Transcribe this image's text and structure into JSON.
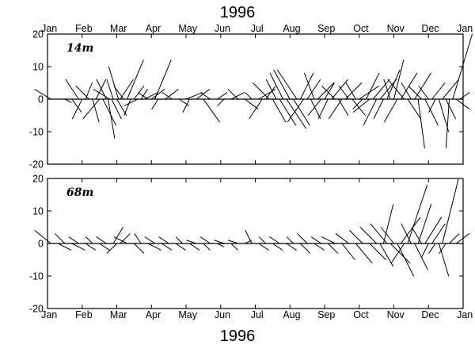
{
  "title_top": "1996",
  "title_bottom": "1996",
  "chart_data": [
    {
      "type": "stick-vector",
      "panel_label": "14m",
      "months_top": [
        "Jan",
        "Feb",
        "Mar",
        "Apr",
        "May",
        "Jun",
        "Jul",
        "Aug",
        "Sep",
        "Oct",
        "Nov",
        "Dec",
        "Jan"
      ],
      "ylim": [
        -20,
        20
      ],
      "yticks": [
        -20,
        -10,
        0,
        10,
        20
      ],
      "xlim_months": [
        0,
        12
      ],
      "vectors": [
        [
          0.1,
          -5,
          3
        ],
        [
          0.5,
          2,
          -1
        ],
        [
          0.7,
          3,
          -4
        ],
        [
          0.9,
          -4,
          6
        ],
        [
          1.0,
          -3,
          -6
        ],
        [
          1.1,
          2,
          5
        ],
        [
          1.2,
          -4,
          4
        ],
        [
          1.3,
          2,
          -7
        ],
        [
          1.4,
          3,
          6
        ],
        [
          1.5,
          -5,
          -6
        ],
        [
          1.6,
          4,
          -8
        ],
        [
          1.7,
          -3,
          6
        ],
        [
          1.75,
          2,
          -12
        ],
        [
          1.8,
          -5,
          3
        ],
        [
          1.85,
          3,
          -6
        ],
        [
          1.9,
          -2,
          6
        ],
        [
          2.0,
          3,
          -5
        ],
        [
          2.05,
          -3,
          10
        ],
        [
          2.1,
          4,
          6
        ],
        [
          2.2,
          -3,
          4
        ],
        [
          2.3,
          5,
          12
        ],
        [
          2.4,
          -2,
          -5
        ],
        [
          2.5,
          3,
          4
        ],
        [
          2.6,
          -4,
          -2
        ],
        [
          2.7,
          2,
          3
        ],
        [
          2.8,
          4,
          2
        ],
        [
          2.9,
          -3,
          2
        ],
        [
          3.0,
          4,
          3
        ],
        [
          3.1,
          5,
          12
        ],
        [
          3.2,
          -2,
          -3
        ],
        [
          3.4,
          4,
          3
        ],
        [
          3.6,
          -3,
          2
        ],
        [
          3.8,
          3,
          -2
        ],
        [
          4.0,
          5,
          2
        ],
        [
          4.1,
          -2,
          -4
        ],
        [
          4.3,
          4,
          3
        ],
        [
          4.5,
          5,
          -7
        ],
        [
          4.7,
          -3,
          2
        ],
        [
          4.9,
          3,
          2
        ],
        [
          5.1,
          -2,
          -2
        ],
        [
          5.3,
          4,
          2
        ],
        [
          5.5,
          -3,
          3
        ],
        [
          5.7,
          4,
          -3
        ],
        [
          5.9,
          -2,
          2
        ],
        [
          6.1,
          5,
          3
        ],
        [
          6.2,
          -4,
          -6
        ],
        [
          6.3,
          3,
          4
        ],
        [
          6.4,
          -5,
          5
        ],
        [
          6.5,
          4,
          -7
        ],
        [
          6.6,
          -3,
          6
        ],
        [
          6.7,
          5,
          -8
        ],
        [
          6.8,
          -4,
          8
        ],
        [
          6.9,
          6,
          -9
        ],
        [
          7.0,
          -5,
          9
        ],
        [
          7.1,
          5,
          -8
        ],
        [
          7.2,
          -6,
          9
        ],
        [
          7.3,
          4,
          8
        ],
        [
          7.4,
          -5,
          -7
        ],
        [
          7.5,
          4,
          6
        ],
        [
          7.6,
          3,
          -6
        ],
        [
          7.7,
          -3,
          8
        ],
        [
          7.8,
          5,
          5
        ],
        [
          7.9,
          -4,
          -5
        ],
        [
          8.0,
          3,
          5
        ],
        [
          8.1,
          -3,
          -6
        ],
        [
          8.2,
          5,
          6
        ],
        [
          8.3,
          -4,
          4
        ],
        [
          8.4,
          3,
          -5
        ],
        [
          8.5,
          -4,
          -6
        ],
        [
          8.6,
          5,
          5
        ],
        [
          8.7,
          -3,
          4
        ],
        [
          8.8,
          4,
          -5
        ],
        [
          8.9,
          -3,
          5
        ],
        [
          9.0,
          6,
          4
        ],
        [
          9.1,
          -3,
          -3
        ],
        [
          9.2,
          4,
          8
        ],
        [
          9.3,
          -5,
          -4
        ],
        [
          9.4,
          5,
          6
        ],
        [
          9.5,
          -4,
          -8
        ],
        [
          9.6,
          5,
          6
        ],
        [
          9.7,
          -3,
          -6
        ],
        [
          9.8,
          4,
          9
        ],
        [
          9.9,
          -2,
          6
        ],
        [
          10.0,
          3,
          12
        ],
        [
          10.1,
          -4,
          -7
        ],
        [
          10.2,
          5,
          8
        ],
        [
          10.3,
          -5,
          6
        ],
        [
          10.4,
          4,
          -6
        ],
        [
          10.5,
          -3,
          5
        ],
        [
          10.6,
          5,
          8
        ],
        [
          10.7,
          2,
          -15
        ],
        [
          10.8,
          -4,
          4
        ],
        [
          10.9,
          4,
          -8
        ],
        [
          11.0,
          -3,
          4
        ],
        [
          11.1,
          4,
          5
        ],
        [
          11.2,
          -2,
          -4
        ],
        [
          11.3,
          3,
          -10
        ],
        [
          11.4,
          5,
          6
        ],
        [
          11.5,
          3,
          -6
        ],
        [
          11.6,
          -1,
          -15
        ],
        [
          11.7,
          6,
          20
        ],
        [
          11.8,
          4,
          -3
        ],
        [
          11.9,
          3,
          2
        ]
      ]
    },
    {
      "type": "stick-vector",
      "panel_label": "68m",
      "months_bottom": [
        "Jan",
        "Feb",
        "Mar",
        "Apr",
        "May",
        "Jun",
        "Jul",
        "Aug",
        "Sep",
        "Oct",
        "Nov",
        "Dec",
        "Jan"
      ],
      "ylim": [
        -20,
        20
      ],
      "yticks": [
        -20,
        -10,
        0,
        10,
        20
      ],
      "xlim_months": [
        0,
        12
      ],
      "vectors": [
        [
          0.1,
          -5,
          4
        ],
        [
          0.3,
          4,
          -2
        ],
        [
          0.5,
          -3,
          3
        ],
        [
          0.7,
          4,
          -2
        ],
        [
          0.9,
          -3,
          2
        ],
        [
          1.1,
          3,
          -2
        ],
        [
          1.3,
          -2,
          2
        ],
        [
          1.5,
          3,
          -2
        ],
        [
          1.7,
          -3,
          2
        ],
        [
          1.9,
          3,
          5
        ],
        [
          2.0,
          -3,
          -3
        ],
        [
          2.1,
          3,
          3
        ],
        [
          2.3,
          -4,
          2
        ],
        [
          2.5,
          3,
          -3
        ],
        [
          2.7,
          -2,
          3
        ],
        [
          2.9,
          4,
          -2
        ],
        [
          3.1,
          -3,
          2
        ],
        [
          3.3,
          3,
          -2
        ],
        [
          3.5,
          -3,
          2
        ],
        [
          3.7,
          3,
          -2
        ],
        [
          3.9,
          -2,
          2
        ],
        [
          4.1,
          3,
          -2
        ],
        [
          4.3,
          -3,
          1
        ],
        [
          4.5,
          2,
          -2
        ],
        [
          4.7,
          -3,
          2
        ],
        [
          4.9,
          2,
          -1
        ],
        [
          5.1,
          -3,
          1
        ],
        [
          5.3,
          2,
          -2
        ],
        [
          5.5,
          -3,
          1
        ],
        [
          5.7,
          2,
          1
        ],
        [
          5.9,
          -2,
          4
        ],
        [
          6.1,
          3,
          -2
        ],
        [
          6.3,
          -2,
          2
        ],
        [
          6.5,
          3,
          -2
        ],
        [
          6.7,
          -3,
          2
        ],
        [
          6.9,
          3,
          -2
        ],
        [
          7.1,
          -2,
          2
        ],
        [
          7.3,
          3,
          -3
        ],
        [
          7.5,
          -3,
          3
        ],
        [
          7.7,
          3,
          -2
        ],
        [
          7.9,
          -3,
          2
        ],
        [
          8.1,
          3,
          -3
        ],
        [
          8.3,
          -4,
          2
        ],
        [
          8.5,
          4,
          -5
        ],
        [
          8.7,
          -4,
          3
        ],
        [
          8.9,
          5,
          -6
        ],
        [
          9.1,
          -4,
          4
        ],
        [
          9.3,
          5,
          -5
        ],
        [
          9.5,
          -5,
          5
        ],
        [
          9.6,
          4,
          -7
        ],
        [
          9.7,
          3,
          12
        ],
        [
          9.8,
          -5,
          6
        ],
        [
          9.9,
          6,
          -6
        ],
        [
          10.0,
          -4,
          5
        ],
        [
          10.1,
          5,
          -10
        ],
        [
          10.2,
          6,
          8
        ],
        [
          10.3,
          -4,
          -6
        ],
        [
          10.4,
          6,
          18
        ],
        [
          10.5,
          -3,
          6
        ],
        [
          10.6,
          4,
          -8
        ],
        [
          10.7,
          4,
          12
        ],
        [
          10.8,
          -3,
          5
        ],
        [
          10.9,
          5,
          8
        ],
        [
          11.0,
          -2,
          -4
        ],
        [
          11.1,
          4,
          6
        ],
        [
          11.2,
          -2,
          -3
        ],
        [
          11.3,
          3,
          -10
        ],
        [
          11.4,
          5,
          20
        ],
        [
          11.5,
          -2,
          -3
        ],
        [
          11.6,
          3,
          3
        ],
        [
          11.8,
          4,
          3
        ]
      ]
    }
  ]
}
